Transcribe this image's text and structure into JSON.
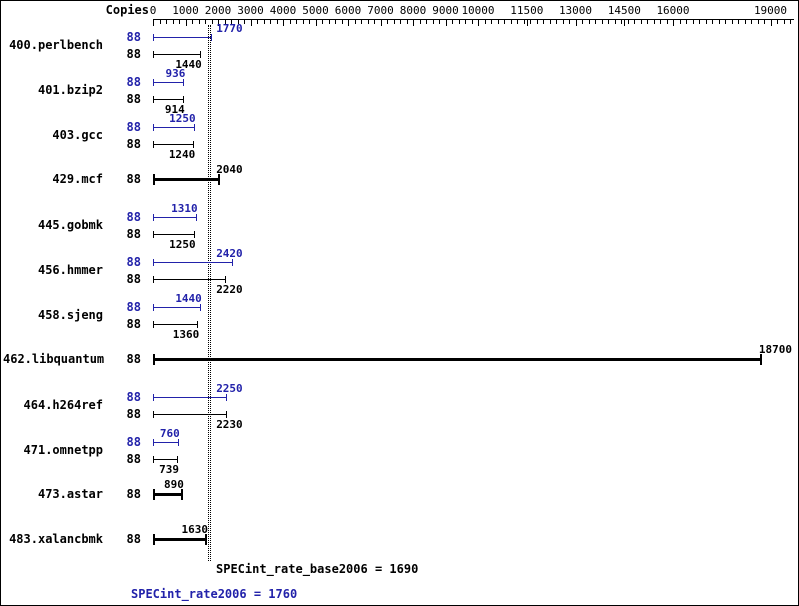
{
  "chart_data": {
    "type": "bar",
    "orientation": "horizontal",
    "copies_header": "Copies",
    "axis": {
      "min": 0,
      "max": 19700,
      "labeled_ticks": [
        0,
        1000,
        2000,
        3000,
        4000,
        5000,
        6000,
        7000,
        8000,
        9000,
        10000,
        11500,
        13000,
        14500,
        16000,
        19000
      ],
      "minor_tick_step": 200
    },
    "benchmarks": [
      {
        "name": "400.perlbench",
        "copies": 88,
        "peak": 1770,
        "base": 1440
      },
      {
        "name": "401.bzip2",
        "copies": 88,
        "peak": 936,
        "base": 914
      },
      {
        "name": "403.gcc",
        "copies": 88,
        "peak": 1250,
        "base": 1240
      },
      {
        "name": "429.mcf",
        "copies": 88,
        "base": 2040,
        "single": true
      },
      {
        "name": "445.gobmk",
        "copies": 88,
        "peak": 1310,
        "base": 1250
      },
      {
        "name": "456.hmmer",
        "copies": 88,
        "peak": 2420,
        "base": 2220
      },
      {
        "name": "458.sjeng",
        "copies": 88,
        "peak": 1440,
        "base": 1360
      },
      {
        "name": "462.libquantum",
        "copies": 88,
        "base": 18700,
        "single": true
      },
      {
        "name": "464.h264ref",
        "copies": 88,
        "peak": 2250,
        "base": 2230
      },
      {
        "name": "471.omnetpp",
        "copies": 88,
        "peak": 760,
        "base": 739
      },
      {
        "name": "473.astar",
        "copies": 88,
        "base": 890,
        "single": true
      },
      {
        "name": "483.xalancbmk",
        "copies": 88,
        "base": 1630,
        "single": true
      }
    ],
    "summary": {
      "base_metric": "SPECint_rate_base2006",
      "base_value": 1690,
      "peak_metric": "SPECint_rate2006",
      "peak_value": 1760
    },
    "reference_lines": [
      {
        "value": 1690,
        "style": "dotted"
      },
      {
        "value": 1760,
        "style": "dotted"
      }
    ],
    "colors": {
      "peak": "#2222aa",
      "base": "#000000"
    }
  },
  "footer": {
    "base_text": "SPECint_rate_base2006 = 1690",
    "peak_text": "SPECint_rate2006 = 1760"
  }
}
